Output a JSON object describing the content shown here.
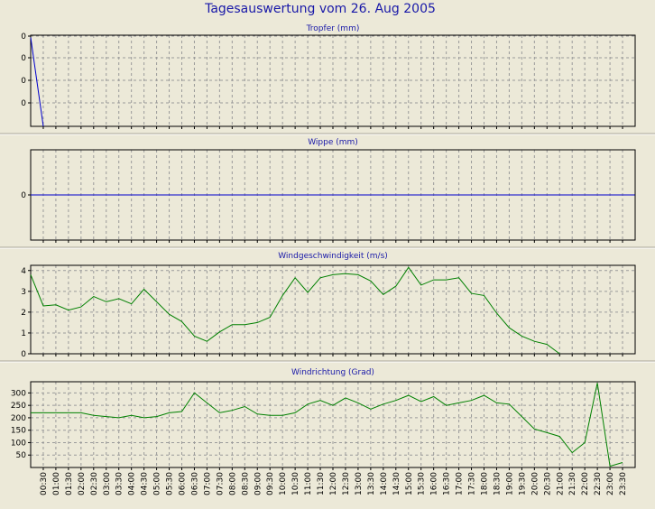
{
  "page": {
    "title": "Tagesauswertung vom 26. Aug 2005",
    "background": "#ECE9D8",
    "title_color": "#1818A8"
  },
  "chart_data": [
    {
      "type": "line",
      "title": "Tropfer (mm)",
      "color": "#0000CC",
      "ytick_labels": [
        "0",
        "0",
        "0",
        "0"
      ],
      "x": [
        "00:00",
        "00:30"
      ],
      "values": [
        4,
        0
      ],
      "ylim": [
        0,
        4.1
      ],
      "grid": true
    },
    {
      "type": "line",
      "title": "Wippe (mm)",
      "color": "#0000CC",
      "ytick_labels": [
        "0"
      ],
      "x": [
        "00:00",
        "23:59"
      ],
      "values": [
        0,
        0
      ],
      "ylim": [
        -1,
        1
      ],
      "grid": true
    },
    {
      "type": "line",
      "title": "Windgeschwindigkeit (m/s)",
      "color": "#008000",
      "ytick_labels": [
        "0",
        "1",
        "2",
        "3",
        "4"
      ],
      "x": [
        "00:00",
        "00:30",
        "01:00",
        "01:30",
        "02:00",
        "02:30",
        "03:00",
        "03:30",
        "04:00",
        "04:30",
        "05:00",
        "05:30",
        "06:00",
        "06:30",
        "07:00",
        "07:30",
        "08:00",
        "08:30",
        "09:00",
        "09:30",
        "10:00",
        "10:30",
        "11:00",
        "11:30",
        "12:00",
        "12:30",
        "13:00",
        "13:30",
        "14:00",
        "14:30",
        "15:00",
        "15:30",
        "16:00",
        "16:30",
        "17:00",
        "17:30",
        "18:00",
        "18:30",
        "19:00",
        "19:30",
        "20:00",
        "20:30",
        "21:00"
      ],
      "values": [
        3.8,
        2.3,
        2.35,
        2.1,
        2.25,
        2.75,
        2.5,
        2.65,
        2.4,
        3.1,
        2.5,
        1.9,
        1.55,
        0.85,
        0.6,
        1.05,
        1.4,
        1.4,
        1.5,
        1.75,
        2.8,
        3.65,
        2.95,
        3.65,
        3.8,
        3.85,
        3.8,
        3.5,
        2.85,
        3.25,
        4.15,
        3.3,
        3.55,
        3.55,
        3.65,
        2.9,
        2.8,
        1.95,
        1.25,
        0.85,
        0.6,
        0.45,
        0.0
      ],
      "ylim": [
        0,
        4.25
      ],
      "grid": true
    },
    {
      "type": "line",
      "title": "Windrichtung (Grad)",
      "color": "#008000",
      "ytick_labels": [
        "50",
        "100",
        "150",
        "200",
        "250",
        "300"
      ],
      "x": [
        "00:00",
        "00:30",
        "01:00",
        "01:30",
        "02:00",
        "02:30",
        "03:00",
        "03:30",
        "04:00",
        "04:30",
        "05:00",
        "05:30",
        "06:00",
        "06:30",
        "07:00",
        "07:30",
        "08:00",
        "08:30",
        "09:00",
        "09:30",
        "10:00",
        "10:30",
        "11:00",
        "11:30",
        "12:00",
        "12:30",
        "13:00",
        "13:30",
        "14:00",
        "14:30",
        "15:00",
        "15:30",
        "16:00",
        "16:30",
        "17:00",
        "17:30",
        "18:00",
        "18:30",
        "19:00",
        "19:30",
        "20:00",
        "20:30",
        "21:00",
        "21:30",
        "22:00",
        "22:30",
        "23:00",
        "23:30"
      ],
      "values": [
        220,
        220,
        220,
        220,
        220,
        210,
        205,
        200,
        210,
        200,
        205,
        220,
        225,
        300,
        260,
        220,
        230,
        245,
        215,
        210,
        210,
        220,
        255,
        270,
        250,
        280,
        260,
        235,
        255,
        270,
        290,
        265,
        285,
        250,
        260,
        270,
        290,
        260,
        255,
        205,
        155,
        140,
        125,
        60,
        100,
        340,
        5,
        20
      ],
      "ylim": [
        0,
        345
      ],
      "grid": true
    }
  ],
  "x_tick_labels": [
    "00:30",
    "01:00",
    "01:30",
    "02:00",
    "02:30",
    "03:00",
    "03:30",
    "04:00",
    "04:30",
    "05:00",
    "05:30",
    "06:00",
    "06:30",
    "07:00",
    "07:30",
    "08:00",
    "08:30",
    "09:00",
    "09:30",
    "10:00",
    "10:30",
    "11:00",
    "11:30",
    "12:00",
    "12:30",
    "13:00",
    "13:30",
    "14:00",
    "14:30",
    "15:00",
    "15:30",
    "16:00",
    "16:30",
    "17:00",
    "17:30",
    "18:00",
    "18:30",
    "19:00",
    "19:30",
    "20:00",
    "20:30",
    "21:00",
    "21:30",
    "22:00",
    "22:30",
    "23:00",
    "23:30"
  ]
}
